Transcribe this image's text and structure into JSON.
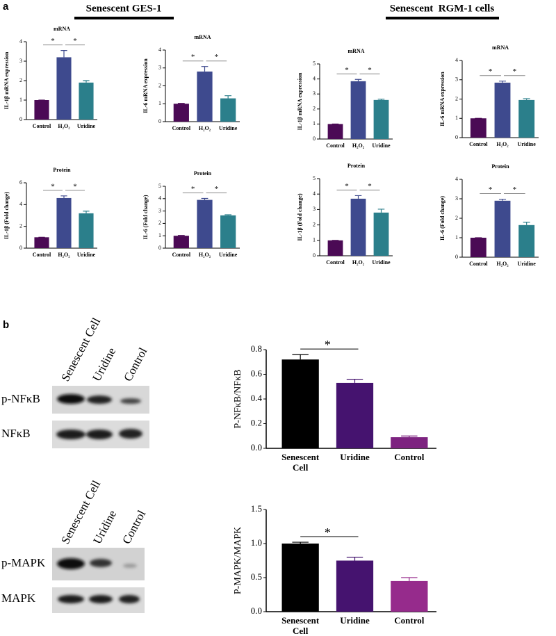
{
  "panel_labels": [
    "a",
    "b"
  ],
  "headings": [
    "Senescent GES-1",
    "Senescent  RGM-1 cells"
  ],
  "chart_data": [
    {
      "type": "bar",
      "title": "mRNA",
      "y_label": "IL-1β mRNA expression",
      "categories": [
        "Control",
        "H₂O₂",
        "Uridine"
      ],
      "values": [
        1,
        3.2,
        1.9
      ],
      "errors": [
        0,
        0.35,
        0.1
      ],
      "colors": [
        "#4b0a55",
        "#3e4a8e",
        "#2b7f8b"
      ],
      "ylim": [
        0,
        4
      ],
      "yticks": [
        0,
        1,
        2,
        3,
        4
      ],
      "annotations": [
        "*",
        "*"
      ]
    },
    {
      "type": "bar",
      "title": "mRNA",
      "y_label": "IL-6 mRNA expression",
      "categories": [
        "Control",
        "H₂O₂",
        "Uridine"
      ],
      "values": [
        1,
        2.8,
        1.3
      ],
      "errors": [
        0.02,
        0.28,
        0.15
      ],
      "colors": [
        "#4b0a55",
        "#3e4a8e",
        "#2b7f8b"
      ],
      "ylim": [
        0,
        4
      ],
      "yticks": [
        0,
        1,
        2,
        3,
        4
      ],
      "annotations": [
        "*",
        "*"
      ]
    },
    {
      "type": "bar",
      "title": "mRNA",
      "y_label": "IL-1β mRNA expression",
      "categories": [
        "Control",
        "H₂O₂",
        "Uridine"
      ],
      "values": [
        1,
        3.85,
        2.6
      ],
      "errors": [
        0,
        0.12,
        0.06
      ],
      "colors": [
        "#4b0a55",
        "#3e4a8e",
        "#2b7f8b"
      ],
      "ylim": [
        0,
        5
      ],
      "yticks": [
        0,
        1,
        2,
        3,
        4,
        5
      ],
      "annotations": [
        "*",
        "*"
      ]
    },
    {
      "type": "bar",
      "title": "mRNA",
      "y_label": "IL-6 mRNA expression",
      "categories": [
        "Control",
        "H₂O₂",
        "Uridine"
      ],
      "values": [
        1,
        2.85,
        1.95
      ],
      "errors": [
        0,
        0.08,
        0.07
      ],
      "colors": [
        "#4b0a55",
        "#3e4a8e",
        "#2b7f8b"
      ],
      "ylim": [
        0,
        4
      ],
      "yticks": [
        0,
        1,
        2,
        3,
        4
      ],
      "annotations": [
        "*",
        "*"
      ]
    },
    {
      "type": "bar",
      "title": "Protein",
      "y_label": "IL-1β (Fold change)",
      "categories": [
        "Control",
        "H₂O₂",
        "Uridine"
      ],
      "values": [
        1,
        4.6,
        3.2
      ],
      "errors": [
        0,
        0.2,
        0.2
      ],
      "colors": [
        "#4b0a55",
        "#3e4a8e",
        "#2b7f8b"
      ],
      "ylim": [
        0,
        6
      ],
      "yticks": [
        0,
        2,
        4,
        6
      ],
      "annotations": [
        "*",
        "*"
      ]
    },
    {
      "type": "bar",
      "title": "Protein",
      "y_label": "IL-6 (Fold change)",
      "categories": [
        "Control",
        "H₂O₂",
        "Uridine"
      ],
      "values": [
        1,
        3.9,
        2.65
      ],
      "errors": [
        0.03,
        0.12,
        0.05
      ],
      "colors": [
        "#4b0a55",
        "#3e4a8e",
        "#2b7f8b"
      ],
      "ylim": [
        0,
        5
      ],
      "yticks": [
        0,
        1,
        2,
        3,
        4,
        5
      ],
      "annotations": [
        "*",
        "*"
      ]
    },
    {
      "type": "bar",
      "title": "Protein",
      "y_label": "IL-1β (Fold change)",
      "categories": [
        "Control",
        "H₂O₂",
        "Uridine"
      ],
      "values": [
        1,
        3.7,
        2.8
      ],
      "errors": [
        0,
        0.2,
        0.22
      ],
      "colors": [
        "#4b0a55",
        "#3e4a8e",
        "#2b7f8b"
      ],
      "ylim": [
        0,
        5
      ],
      "yticks": [
        0,
        1,
        2,
        3,
        4,
        5
      ],
      "annotations": [
        "*",
        "*"
      ]
    },
    {
      "type": "bar",
      "title": "Protein",
      "y_label": "IL-6 (Fold change)",
      "categories": [
        "Control",
        "H₂O₂",
        "Uridine"
      ],
      "values": [
        1,
        2.9,
        1.65
      ],
      "errors": [
        0,
        0.08,
        0.15
      ],
      "colors": [
        "#4b0a55",
        "#3e4a8e",
        "#2b7f8b"
      ],
      "ylim": [
        0,
        4
      ],
      "yticks": [
        0,
        1,
        2,
        3,
        4
      ],
      "annotations": [
        "*",
        "*"
      ]
    },
    {
      "type": "bar",
      "y_label": "P-NFκB/NFκB",
      "categories": [
        "Senescent Cell",
        "Uridine",
        "Control"
      ],
      "values": [
        0.72,
        0.53,
        0.09
      ],
      "errors": [
        0.04,
        0.03,
        0.01
      ],
      "colors": [
        "#000000",
        "#45136f",
        "#7d2380"
      ],
      "ylim": [
        0,
        0.8
      ],
      "yticks": [
        {
          "value": 0,
          "label": "0.0"
        },
        0.2,
        0.4,
        0.6,
        0.8
      ],
      "annotations": [
        "*"
      ]
    },
    {
      "type": "bar",
      "y_label": "P-MAPK/MAPK",
      "categories": [
        "Senescent Cell",
        "Uridine",
        "Control"
      ],
      "values": [
        1.0,
        0.75,
        0.45
      ],
      "errors": [
        0.02,
        0.05,
        0.05
      ],
      "colors": [
        "#000000",
        "#45136f",
        "#962b8c"
      ],
      "ylim": [
        0,
        1.5
      ],
      "yticks": [
        {
          "value": 0,
          "label": "0.0"
        },
        {
          "value": 0.5,
          "label": "0.5"
        },
        {
          "value": 1,
          "label": "1.0"
        },
        {
          "value": 1.5,
          "label": "1.5"
        }
      ],
      "annotations": [
        "*"
      ]
    }
  ],
  "blots": [
    {
      "lanes": [
        "Senescent Cell",
        "Uridine",
        "Control"
      ],
      "rows": [
        "p-NFκB",
        "NFκB"
      ]
    },
    {
      "lanes": [
        "Senescent Cell",
        "Uridine",
        "Control"
      ],
      "rows": [
        "p-MAPK",
        "MAPK"
      ]
    }
  ]
}
